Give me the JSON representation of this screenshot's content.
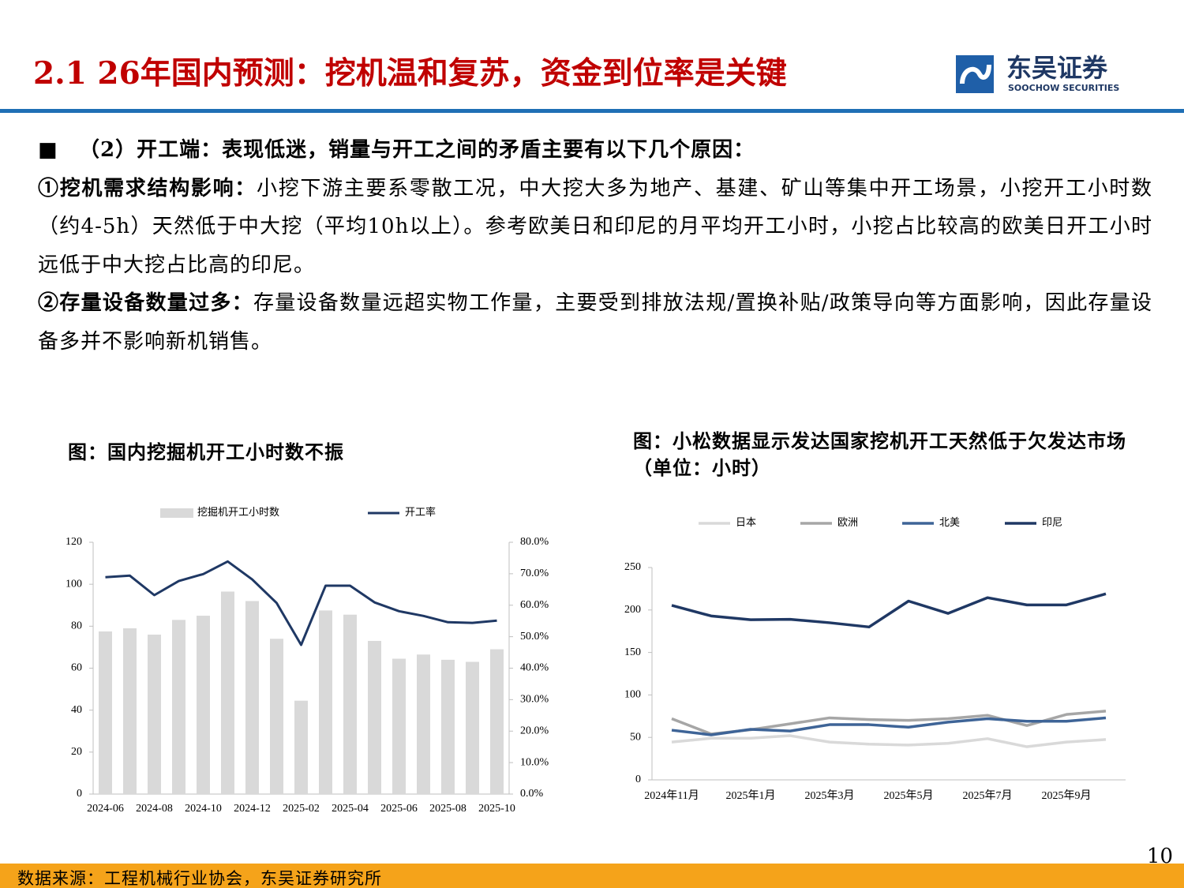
{
  "header": {
    "title": "2.1 26年国内预测：挖机温和复苏，资金到位率是关键",
    "logo_cn": "东吴证券",
    "logo_en": "SOOCHOW SECURITIES"
  },
  "body": {
    "intro": "（2）开工端：表现低迷，销量与开工之间的矛盾主要有以下几个原因：",
    "points": [
      {
        "label": "①挖机需求结构影响：",
        "text": "小挖下游主要系零散工况，中大挖大多为地产、基建、矿山等集中开工场景，小挖开工小时数（约4-5h）天然低于中大挖（平均10h以上）。参考欧美日和印尼的月平均开工小时，小挖占比较高的欧美日开工小时远低于中大挖占比高的印尼。"
      },
      {
        "label": "②存量设备数量过多：",
        "text": "存量设备数量远超实物工作量，主要受到排放法规/置换补贴/政策导向等方面影响，因此存量设备多并不影响新机销售。"
      }
    ]
  },
  "chart_data": [
    {
      "type": "bar",
      "title": "图：国内挖掘机开工小时数不振",
      "categories": [
        "2024-06",
        null,
        "2024-08",
        null,
        "2024-10",
        null,
        "2024-12",
        null,
        "2025-02",
        null,
        "2025-04",
        null,
        "2025-06",
        null,
        "2025-08",
        null,
        "2025-10"
      ],
      "series": [
        {
          "name": "挖掘机开工小时数",
          "type": "bar",
          "color": "#d9d9d9",
          "values": [
            77.5,
            79,
            76,
            83,
            85,
            96.5,
            92,
            74,
            44.5,
            87.5,
            85.5,
            73,
            64.5,
            66.5,
            64,
            63,
            69
          ]
        },
        {
          "name": "开工率",
          "type": "line",
          "axis": "y2",
          "color": "#1f3864",
          "values": [
            68.9,
            69.4,
            63.2,
            67.7,
            69.9,
            73.9,
            68.2,
            60.7,
            47.4,
            66.2,
            66.2,
            60.9,
            58.1,
            56.6,
            54.6,
            54.4,
            55.1
          ]
        }
      ],
      "ylim": [
        0,
        120
      ],
      "yticks": [
        0,
        20,
        40,
        60,
        80,
        100,
        120
      ],
      "y2lim": [
        0,
        80
      ],
      "y2ticks": [
        {
          "value": 0,
          "label": "0.0%"
        },
        {
          "value": 10,
          "label": "10.0%"
        },
        {
          "value": 20,
          "label": "20.0%"
        },
        {
          "value": 30,
          "label": "30.0%"
        },
        {
          "value": 40,
          "label": "40.0%"
        },
        {
          "value": 50,
          "label": "50.0%"
        },
        {
          "value": 60,
          "label": "60.0%"
        },
        {
          "value": 70,
          "label": "70.0%"
        },
        {
          "value": 80,
          "label": "80.0%"
        }
      ],
      "legend": "top"
    },
    {
      "type": "line",
      "title": "图：小松数据显示发达国家挖机开工天然低于欠发达市场（单位：小时）",
      "categories": [
        "2024年11月",
        null,
        "2025年1月",
        null,
        "2025年3月",
        null,
        "2025年5月",
        null,
        "2025年7月",
        null,
        "2025年9月",
        null
      ],
      "series": [
        {
          "name": "日本",
          "color": "#d9d9d9",
          "values": [
            44.5,
            49,
            49,
            52,
            44.5,
            42,
            41,
            43,
            48.5,
            39,
            44.5,
            47.5
          ]
        },
        {
          "name": "欧洲",
          "color": "#a6a6a6",
          "values": [
            72,
            54,
            59,
            66,
            73,
            71,
            70,
            72,
            76,
            64,
            77,
            81
          ]
        },
        {
          "name": "北美",
          "color": "#3e6497",
          "values": [
            58.5,
            53,
            59.5,
            57.5,
            65,
            65,
            62,
            68,
            72,
            69,
            69,
            73
          ]
        },
        {
          "name": "印尼",
          "color": "#1f3864",
          "values": [
            205.4,
            193,
            188.5,
            189,
            185,
            180,
            210.5,
            196,
            214.5,
            206,
            206,
            219
          ]
        }
      ],
      "ylim": [
        0,
        250
      ],
      "yticks": [
        0,
        50,
        100,
        150,
        200,
        250
      ],
      "legend": "top"
    }
  ],
  "footer": {
    "source": "数据来源：工程机械行业协会，东吴证券研究所",
    "page": "10"
  }
}
